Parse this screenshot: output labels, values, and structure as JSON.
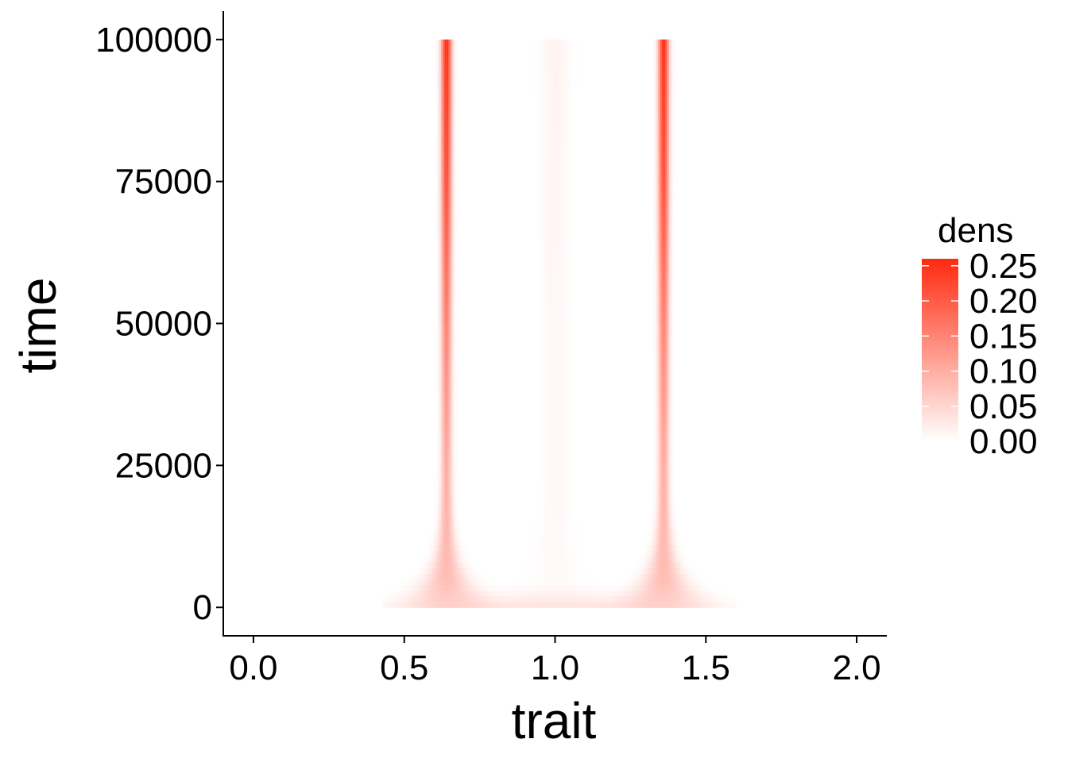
{
  "chart_data": {
    "type": "heatmap",
    "xlabel": "trait",
    "ylabel": "time",
    "xlim": [
      -0.1,
      2.1
    ],
    "ylim": [
      -5000,
      105000
    ],
    "x_ticks": [
      0.0,
      0.5,
      1.0,
      1.5,
      2.0
    ],
    "x_tick_labels": [
      "0.0",
      "0.5",
      "1.0",
      "1.5",
      "2.0"
    ],
    "y_ticks": [
      0,
      25000,
      50000,
      75000,
      100000
    ],
    "y_tick_labels": [
      "0",
      "25000",
      "50000",
      "75000",
      "100000"
    ],
    "grid": false,
    "data_extent": {
      "time": [
        0,
        100000
      ],
      "trait_support": [
        0.43,
        1.6
      ]
    },
    "color_scale": {
      "variable": "dens",
      "low": "#ffffff",
      "high": "#ff2a0f",
      "limits": [
        0,
        0.26
      ]
    },
    "legend": {
      "title": "dens",
      "position": "right",
      "ticks": [
        0.0,
        0.05,
        0.1,
        0.15,
        0.2,
        0.25
      ],
      "tick_labels": [
        "0.00",
        "0.05",
        "0.10",
        "0.15",
        "0.20",
        "0.25"
      ]
    },
    "series": [
      {
        "trait": 0.64,
        "density_profile": [
          {
            "time": 0,
            "peak_dens": 0.05
          },
          {
            "time": 5000,
            "peak_dens": 0.08
          },
          {
            "time": 25000,
            "peak_dens": 0.1
          },
          {
            "time": 50000,
            "peak_dens": 0.15
          },
          {
            "time": 75000,
            "peak_dens": 0.21
          },
          {
            "time": 100000,
            "peak_dens": 0.25
          }
        ]
      },
      {
        "trait": 1.36,
        "density_profile": [
          {
            "time": 0,
            "peak_dens": 0.05
          },
          {
            "time": 5000,
            "peak_dens": 0.08
          },
          {
            "time": 25000,
            "peak_dens": 0.1
          },
          {
            "time": 50000,
            "peak_dens": 0.15
          },
          {
            "time": 75000,
            "peak_dens": 0.21
          },
          {
            "time": 100000,
            "peak_dens": 0.25
          }
        ]
      },
      {
        "trait": 1.0,
        "density_profile": [
          {
            "time": 0,
            "peak_dens": 0.005
          },
          {
            "time": 25000,
            "peak_dens": 0.01
          },
          {
            "time": 50000,
            "peak_dens": 0.01
          },
          {
            "time": 100000,
            "peak_dens": 0.015
          }
        ]
      }
    ]
  }
}
